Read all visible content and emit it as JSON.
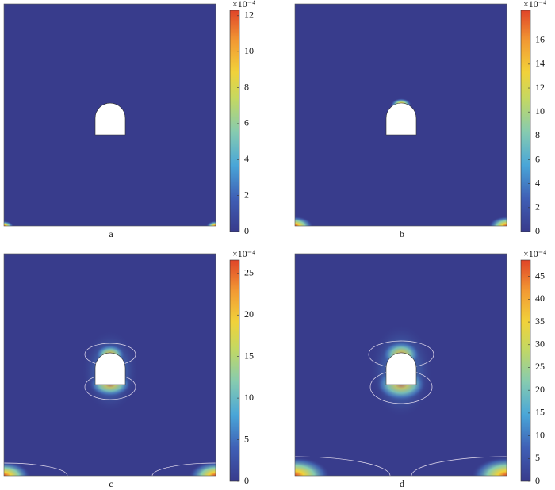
{
  "chart_data": [
    {
      "type": "contour",
      "caption": "a",
      "scale_label": "×10⁻⁴",
      "ylim": [
        0,
        12.3
      ],
      "yticks": [
        0,
        2,
        4,
        6,
        8,
        10,
        12
      ]
    },
    {
      "type": "contour",
      "caption": "b",
      "scale_label": "×10⁻⁴",
      "ylim": [
        0,
        18.5
      ],
      "yticks": [
        0,
        2,
        4,
        6,
        8,
        10,
        12,
        14,
        16
      ]
    },
    {
      "type": "contour",
      "caption": "c",
      "scale_label": "×10⁻⁴",
      "ylim": [
        0,
        26.6
      ],
      "yticks": [
        0,
        5,
        10,
        15,
        20,
        25
      ]
    },
    {
      "type": "contour",
      "caption": "d",
      "scale_label": "×10⁻⁴",
      "ylim": [
        0,
        48.6
      ],
      "yticks": [
        0,
        5,
        10,
        15,
        20,
        25,
        30,
        35,
        40,
        45
      ]
    }
  ]
}
